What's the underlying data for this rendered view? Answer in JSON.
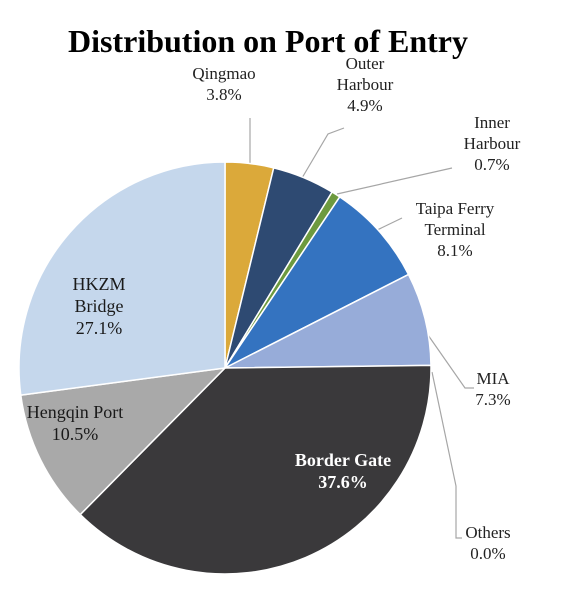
{
  "chart_data": {
    "type": "pie",
    "title": "Distribution on Port of Entry",
    "slices": [
      {
        "label": "Qingmao",
        "value": 3.8,
        "text": "3.8%",
        "color": "#dba93a"
      },
      {
        "label": "Outer Harbour",
        "value": 4.9,
        "text": "4.9%",
        "color": "#2e4a72"
      },
      {
        "label": "Inner Harbour",
        "value": 0.7,
        "text": "0.7%",
        "color": "#6d9a3f"
      },
      {
        "label": "Taipa Ferry Terminal",
        "value": 8.1,
        "text": "8.1%",
        "color": "#3473c0"
      },
      {
        "label": "MIA",
        "value": 7.3,
        "text": "7.3%",
        "color": "#97acd9"
      },
      {
        "label": "Others",
        "value": 0.0,
        "text": "0.0%",
        "color": "#c9d3e8"
      },
      {
        "label": "Border Gate",
        "value": 37.6,
        "text": "37.6%",
        "color": "#3a393b"
      },
      {
        "label": "Hengqin Port",
        "value": 10.5,
        "text": "10.5%",
        "color": "#a9a9a9"
      },
      {
        "label": "HKZM Bridge",
        "value": 27.1,
        "text": "27.1%",
        "color": "#c5d7ec"
      }
    ],
    "start_angle_deg": 0,
    "direction": "clockwise",
    "legend": "none",
    "data_labels": "category-and-percent"
  }
}
